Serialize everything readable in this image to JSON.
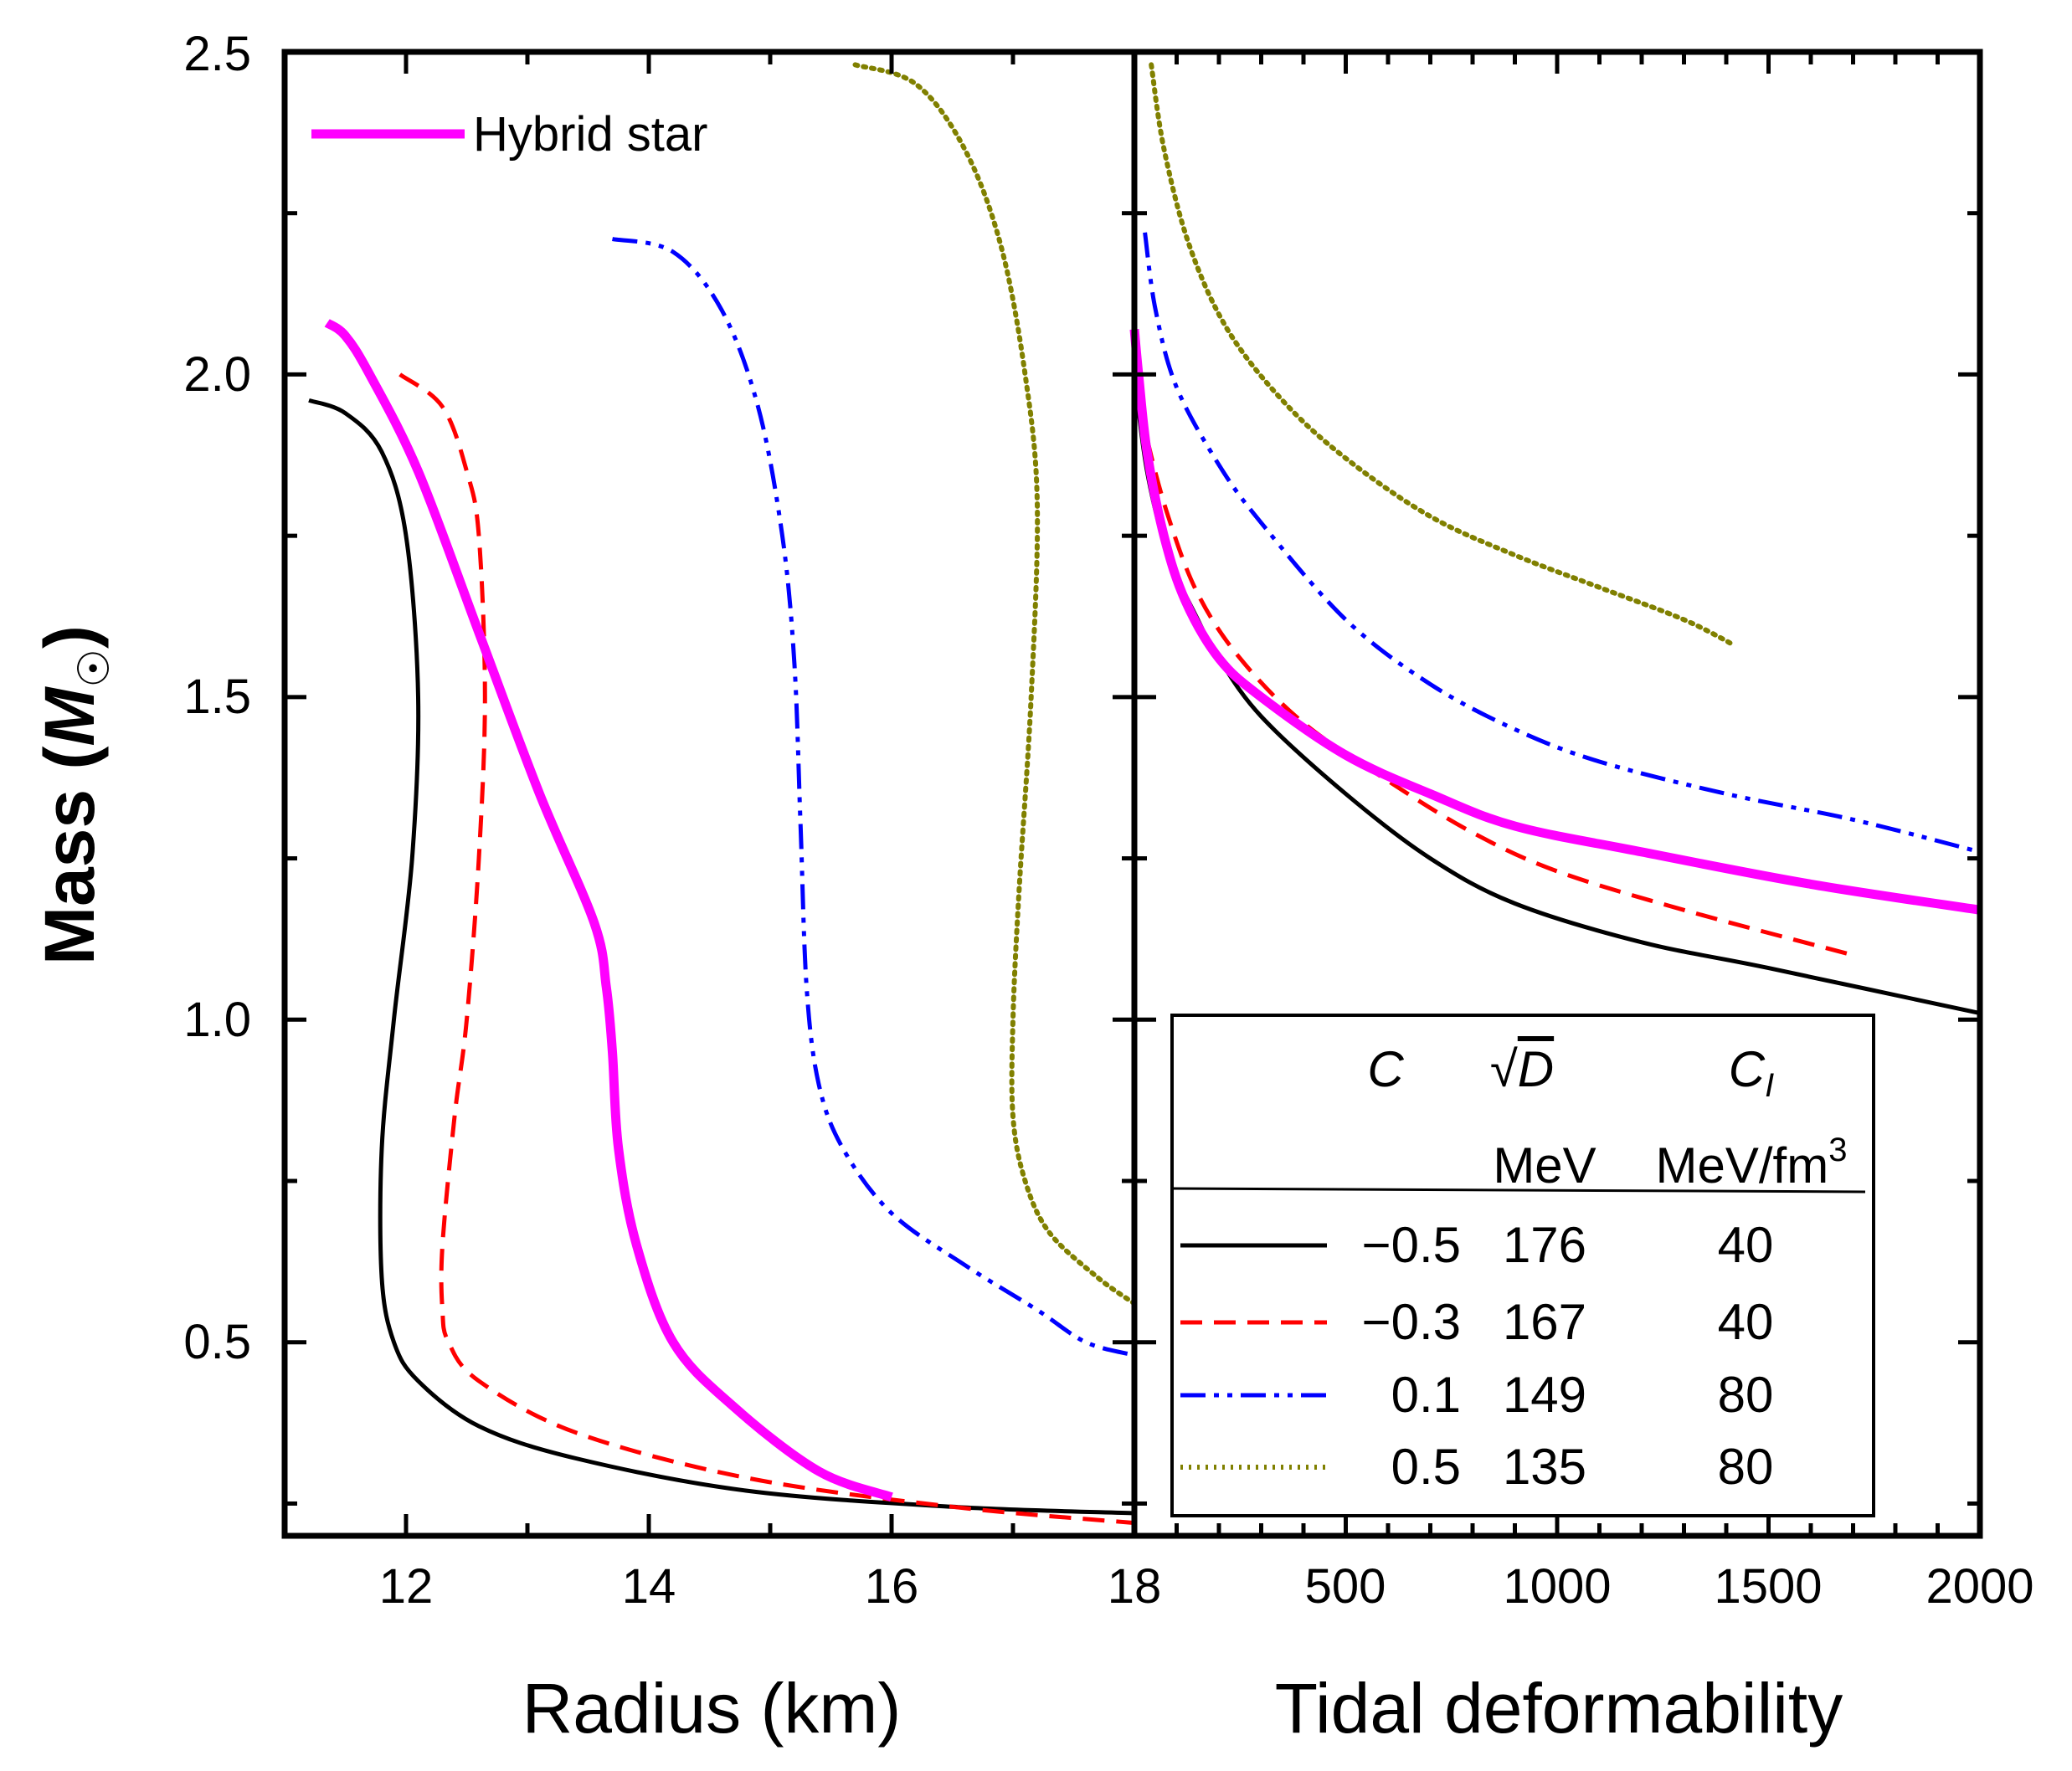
{
  "chart_data": [
    {
      "type": "line",
      "panel": "left",
      "xlabel": "Radius (km)",
      "ylabel_main": "Mass (",
      "ylabel_symbol": "M",
      "ylabel_sub": "☉",
      "ylabel_close": ")",
      "xlim": [
        11.0,
        18.0
      ],
      "ylim": [
        0.2,
        2.5
      ],
      "xticks": [
        12,
        14,
        16,
        18
      ],
      "xtick_labels": [
        "12",
        "14",
        "16",
        "18"
      ],
      "yticks": [
        0.5,
        1.0,
        1.5,
        2.0,
        2.5
      ],
      "ytick_labels": [
        "0.5",
        "1.0",
        "1.5",
        "2.0",
        "2.5"
      ],
      "legend": {
        "position": "top-left",
        "entries": [
          {
            "name": "Hybrid star",
            "color": "#ff00ff"
          }
        ]
      },
      "series": [
        {
          "name": "C=-0.5",
          "color": "#000000",
          "style": "solid",
          "x": [
            11.2,
            11.5,
            11.8,
            12.0,
            12.1,
            12.05,
            11.9,
            11.8,
            11.8,
            11.9,
            12.1,
            12.6,
            13.4,
            14.8,
            16.5,
            18.0
          ],
          "y": [
            1.96,
            1.94,
            1.88,
            1.75,
            1.5,
            1.25,
            1.0,
            0.8,
            0.6,
            0.5,
            0.44,
            0.37,
            0.32,
            0.27,
            0.245,
            0.235
          ]
        },
        {
          "name": "C=-0.3",
          "color": "#ff0000",
          "style": "dashed",
          "x": [
            11.95,
            12.3,
            12.5,
            12.6,
            12.65,
            12.6,
            12.5,
            12.4,
            12.3,
            12.3,
            12.35,
            12.6,
            13.4,
            14.8,
            16.5,
            18.0
          ],
          "y": [
            2.0,
            1.95,
            1.85,
            1.75,
            1.5,
            1.25,
            1.0,
            0.85,
            0.65,
            0.55,
            0.5,
            0.44,
            0.36,
            0.29,
            0.245,
            0.22
          ]
        },
        {
          "name": "Hybrid star",
          "color": "#ff00ff",
          "style": "solid-thick",
          "x": [
            11.35,
            11.5,
            11.7,
            12.1,
            12.6,
            13.1,
            13.55,
            13.65,
            13.7,
            13.75,
            13.9,
            14.2,
            14.7,
            15.4,
            16.0
          ],
          "y": [
            2.08,
            2.06,
            2.0,
            1.85,
            1.6,
            1.35,
            1.15,
            1.05,
            0.95,
            0.8,
            0.65,
            0.5,
            0.4,
            0.3,
            0.26
          ]
        },
        {
          "name": "C=0.1",
          "color": "#0000ff",
          "style": "dash-dot-dot",
          "x": [
            13.7,
            14.2,
            14.6,
            14.9,
            15.1,
            15.2,
            15.25,
            15.3,
            15.4,
            15.6,
            16.0,
            16.6,
            17.2,
            17.6,
            18.0
          ],
          "y": [
            2.21,
            2.19,
            2.1,
            1.95,
            1.75,
            1.55,
            1.3,
            1.05,
            0.9,
            0.8,
            0.7,
            0.62,
            0.55,
            0.5,
            0.48
          ]
        },
        {
          "name": "C=0.5",
          "color": "#808000",
          "style": "dotted",
          "x": [
            15.7,
            16.2,
            16.6,
            16.9,
            17.1,
            17.2,
            17.15,
            17.05,
            17.0,
            17.0,
            17.1,
            17.3,
            17.7,
            18.0
          ],
          "y": [
            2.48,
            2.45,
            2.35,
            2.2,
            2.0,
            1.8,
            1.5,
            1.2,
            1.0,
            0.85,
            0.75,
            0.67,
            0.6,
            0.56
          ]
        }
      ]
    },
    {
      "type": "line",
      "panel": "right",
      "xlabel": "Tidal deformability",
      "xlim": [
        0,
        2000
      ],
      "ylim": [
        0.2,
        2.5
      ],
      "xticks": [
        500,
        1000,
        1500,
        2000
      ],
      "xtick_labels": [
        "500",
        "1000",
        "1500",
        "2000"
      ],
      "series": [
        {
          "name": "C=-0.5",
          "color": "#000000",
          "style": "solid",
          "x": [
            0,
            30,
            80,
            150,
            200,
            300,
            500,
            700,
            900,
            1200,
            1500,
            2000
          ],
          "y": [
            2.0,
            1.85,
            1.72,
            1.62,
            1.56,
            1.47,
            1.35,
            1.25,
            1.18,
            1.12,
            1.08,
            1.01
          ]
        },
        {
          "name": "C=-0.3",
          "color": "#ff0000",
          "style": "dashed",
          "x": [
            0,
            30,
            80,
            150,
            250,
            400,
            600,
            800,
            1000,
            1300,
            1700
          ],
          "y": [
            2.0,
            1.9,
            1.78,
            1.66,
            1.56,
            1.46,
            1.37,
            1.29,
            1.23,
            1.17,
            1.1
          ]
        },
        {
          "name": "Hybrid star",
          "color": "#ff00ff",
          "style": "solid-thick",
          "x": [
            0,
            10,
            30,
            70,
            120,
            200,
            300,
            500,
            700,
            900,
            1200,
            1600,
            2000
          ],
          "y": [
            2.07,
            2.0,
            1.88,
            1.75,
            1.65,
            1.56,
            1.5,
            1.41,
            1.35,
            1.3,
            1.26,
            1.21,
            1.17
          ]
        },
        {
          "name": "C=0.1",
          "color": "#0000ff",
          "style": "dash-dot-dot",
          "x": [
            25,
            50,
            100,
            200,
            300,
            500,
            700,
            900,
            1100,
            1400,
            1700,
            2000
          ],
          "y": [
            2.22,
            2.1,
            1.98,
            1.86,
            1.77,
            1.62,
            1.52,
            1.45,
            1.4,
            1.35,
            1.31,
            1.26
          ]
        },
        {
          "name": "C=0.5",
          "color": "#808000",
          "style": "dotted",
          "x": [
            40,
            70,
            130,
            220,
            350,
            500,
            700,
            900,
            1100,
            1300,
            1420
          ],
          "y": [
            2.48,
            2.35,
            2.2,
            2.07,
            1.96,
            1.87,
            1.78,
            1.72,
            1.67,
            1.62,
            1.58
          ]
        }
      ]
    }
  ],
  "params_table": {
    "headers": [
      "C",
      "√D",
      "C_I"
    ],
    "header_C": "C",
    "header_sqrt": "√",
    "header_D": "D",
    "header_CI_C": "C",
    "header_CI_sub": "I",
    "units_MeV": "MeV",
    "units_MeVfm": "MeV/fm",
    "units_exp": "3",
    "rows": [
      {
        "C": "−0.5",
        "sqrtD": "176",
        "CI": "40",
        "color": "#000000",
        "style": "solid"
      },
      {
        "C": "−0.3",
        "sqrtD": "167",
        "CI": "40",
        "color": "#ff0000",
        "style": "dashed"
      },
      {
        "C": "0.1",
        "sqrtD": "149",
        "CI": "80",
        "color": "#0000ff",
        "style": "dash-dot-dot"
      },
      {
        "C": "0.5",
        "sqrtD": "135",
        "CI": "80",
        "color": "#808000",
        "style": "dotted"
      }
    ]
  }
}
